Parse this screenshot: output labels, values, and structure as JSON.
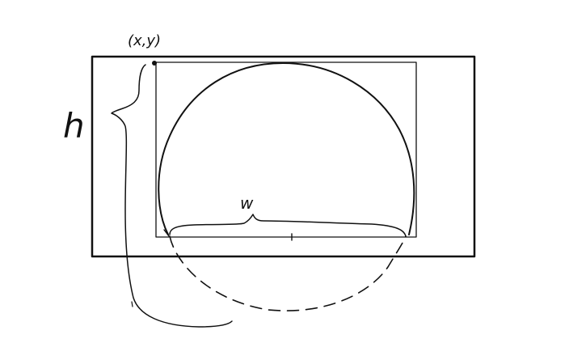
{
  "labels": {
    "corner": "(x,y)",
    "height": "h",
    "width": "w"
  },
  "colors": {
    "ink": "#111111",
    "background": "#ffffff"
  }
}
